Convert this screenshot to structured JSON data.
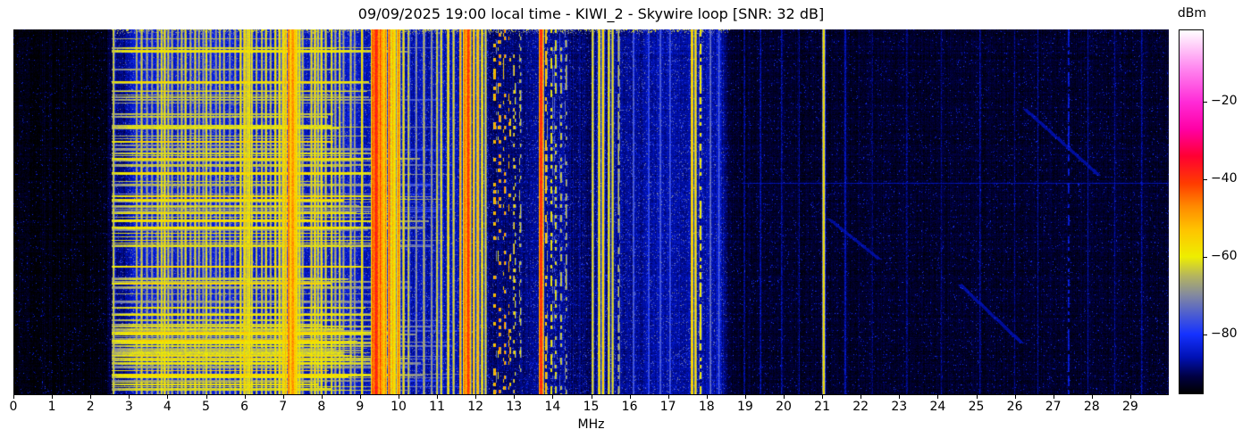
{
  "figure": {
    "title": "09/09/2025 19:00 local time - KIWI_2 - Skywire loop [SNR: 32 dB]",
    "xlabel": "MHz"
  },
  "x_axis": {
    "min": 0,
    "max": 30,
    "tick_labels": [
      "0",
      "1",
      "2",
      "3",
      "4",
      "5",
      "6",
      "7",
      "8",
      "9",
      "10",
      "11",
      "12",
      "13",
      "14",
      "15",
      "16",
      "17",
      "18",
      "19",
      "20",
      "21",
      "22",
      "23",
      "24",
      "25",
      "26",
      "27",
      "28",
      "29"
    ]
  },
  "colorbar": {
    "label": "dBm",
    "tick_labels": [
      "−20",
      "−40",
      "−60",
      "−80"
    ],
    "tick_values": [
      -20,
      -40,
      -60,
      -80
    ]
  },
  "chart_data": {
    "type": "heatmap",
    "subtype": "radio-spectrogram-waterfall",
    "title": "09/09/2025 19:00 local time - KIWI_2 - Skywire loop [SNR: 32 dB]",
    "xlabel": "MHz",
    "x_range": [
      0,
      30
    ],
    "x_ticks": [
      0,
      1,
      2,
      3,
      4,
      5,
      6,
      7,
      8,
      9,
      10,
      11,
      12,
      13,
      14,
      15,
      16,
      17,
      18,
      19,
      20,
      21,
      22,
      23,
      24,
      25,
      26,
      27,
      28,
      29
    ],
    "value_unit": "dBm",
    "value_range": [
      -95.3,
      -1.5
    ],
    "colorbar_ticks": [
      -20,
      -40,
      -60,
      -80
    ],
    "colormap": [
      [
        -95.3,
        "#000000"
      ],
      [
        -91,
        "#000041"
      ],
      [
        -86,
        "#0011b4"
      ],
      [
        -80,
        "#1532ff"
      ],
      [
        -75,
        "#4b5cd2"
      ],
      [
        -70,
        "#8288a0"
      ],
      [
        -65,
        "#b4b45f"
      ],
      [
        -60,
        "#eeee00"
      ],
      [
        -53,
        "#ffc300"
      ],
      [
        -47,
        "#ff8a00"
      ],
      [
        -41,
        "#ff3b00"
      ],
      [
        -34,
        "#ff0032"
      ],
      [
        -27,
        "#ff00a5"
      ],
      [
        -20,
        "#ff2bd7"
      ],
      [
        -11,
        "#ff8af0"
      ],
      [
        -1.5,
        "#ffffff"
      ]
    ],
    "noise_floor_bands": [
      [
        0,
        2.5,
        -94.5
      ],
      [
        2.5,
        3.0,
        -88.5
      ],
      [
        3.0,
        6.5,
        -84
      ],
      [
        6.5,
        9.0,
        -84.5
      ],
      [
        9.0,
        12.3,
        -86
      ],
      [
        12.3,
        13.4,
        -89
      ],
      [
        13.4,
        14.4,
        -87.5
      ],
      [
        14.4,
        15.1,
        -89
      ],
      [
        15.1,
        16.4,
        -87.5
      ],
      [
        16.4,
        18.5,
        -86.5
      ],
      [
        18.5,
        30,
        -92.5
      ]
    ],
    "signals": [
      [
        2.6,
        -62
      ],
      [
        3.2,
        -65
      ],
      [
        3.33,
        -62
      ],
      [
        3.47,
        -66
      ],
      [
        3.6,
        -67
      ],
      [
        3.75,
        -63
      ],
      [
        3.85,
        -60
      ],
      [
        3.93,
        -58
      ],
      [
        4.02,
        -62
      ],
      [
        4.12,
        -65
      ],
      [
        4.27,
        -66
      ],
      [
        4.37,
        -63
      ],
      [
        4.47,
        -60
      ],
      [
        4.6,
        -65
      ],
      [
        4.72,
        -61
      ],
      [
        4.82,
        -64
      ],
      [
        4.93,
        -66
      ],
      [
        5.01,
        -60
      ],
      [
        5.12,
        -64
      ],
      [
        5.26,
        -67
      ],
      [
        5.36,
        -62
      ],
      [
        5.47,
        -64
      ],
      [
        5.62,
        -67
      ],
      [
        5.76,
        -64
      ],
      [
        5.9,
        -58
      ],
      [
        6.0,
        -55
      ],
      [
        6.07,
        -58
      ],
      [
        6.13,
        -56
      ],
      [
        6.19,
        -60
      ],
      [
        6.31,
        -63
      ],
      [
        6.45,
        -62
      ],
      [
        6.56,
        -60
      ],
      [
        6.68,
        -64
      ],
      [
        6.8,
        -58
      ],
      [
        6.91,
        -56
      ],
      [
        7.0,
        -55
      ],
      [
        7.07,
        -52
      ],
      [
        7.15,
        -44
      ],
      [
        7.22,
        -50
      ],
      [
        7.26,
        -46
      ],
      [
        7.31,
        -52
      ],
      [
        7.36,
        -55
      ],
      [
        7.43,
        -58
      ],
      [
        7.51,
        -64
      ],
      [
        7.74,
        -60
      ],
      [
        7.83,
        -57
      ],
      [
        7.91,
        -61
      ],
      [
        8.0,
        -58
      ],
      [
        8.11,
        -62
      ],
      [
        8.26,
        -60
      ],
      [
        8.36,
        -64
      ],
      [
        8.47,
        -61
      ],
      [
        8.57,
        -66
      ],
      [
        8.76,
        -63
      ],
      [
        8.86,
        -67
      ],
      [
        9.05,
        -57
      ],
      [
        9.33,
        -42,
        0.06
      ],
      [
        9.42,
        -38,
        0.11
      ],
      [
        9.53,
        -42,
        0.06
      ],
      [
        9.59,
        -48
      ],
      [
        9.66,
        -46
      ],
      [
        9.76,
        -44,
        0.06
      ],
      [
        9.85,
        -50
      ],
      [
        9.91,
        -55
      ],
      [
        10.0,
        -46,
        0.06
      ],
      [
        10.13,
        -58
      ],
      [
        10.26,
        -62
      ],
      [
        10.46,
        -68
      ],
      [
        10.66,
        -64
      ],
      [
        10.86,
        -67
      ],
      [
        11.0,
        -62
      ],
      [
        11.11,
        -60
      ],
      [
        11.29,
        -56
      ],
      [
        11.43,
        -61
      ],
      [
        11.6,
        -50
      ],
      [
        11.72,
        -44,
        0.06
      ],
      [
        11.81,
        -40,
        0.09
      ],
      [
        11.95,
        -52
      ],
      [
        12.06,
        -50
      ],
      [
        12.17,
        -56
      ],
      [
        12.26,
        -61
      ],
      [
        12.5,
        -48,
        0.05,
        0.25
      ],
      [
        12.62,
        -46,
        0.05,
        0.2
      ],
      [
        12.75,
        -47,
        0.05,
        0.22
      ],
      [
        12.88,
        -48,
        0.05,
        0.2
      ],
      [
        13.01,
        -55,
        0.05,
        0.3
      ],
      [
        13.16,
        -62,
        0.05,
        0.4
      ],
      [
        13.7,
        -38,
        0.08
      ],
      [
        13.83,
        -52,
        0.05,
        0.5
      ],
      [
        13.97,
        -58,
        0.05,
        0.5
      ],
      [
        14.08,
        -60,
        0.05,
        0.45
      ],
      [
        14.22,
        -62,
        0.05,
        0.4
      ],
      [
        14.35,
        -64,
        0.05,
        0.4
      ],
      [
        15.04,
        -60
      ],
      [
        15.21,
        -55
      ],
      [
        15.31,
        -54
      ],
      [
        15.46,
        -58
      ],
      [
        15.56,
        -60
      ],
      [
        15.72,
        -64,
        0.05,
        0.7
      ],
      [
        16.1,
        -74
      ],
      [
        16.5,
        -76
      ],
      [
        16.8,
        -74
      ],
      [
        17.05,
        -75
      ],
      [
        17.62,
        -52
      ],
      [
        17.71,
        -56
      ],
      [
        17.84,
        -58,
        0.05,
        0.6
      ],
      [
        18.1,
        -72
      ],
      [
        18.32,
        -74
      ],
      [
        18.98,
        -86
      ],
      [
        19.4,
        -85
      ],
      [
        19.95,
        -86
      ],
      [
        20.4,
        -87
      ],
      [
        21.04,
        -56
      ],
      [
        21.6,
        -84
      ],
      [
        22.3,
        -88
      ],
      [
        23.2,
        -87
      ],
      [
        24.1,
        -88
      ],
      [
        25.1,
        -86
      ],
      [
        26.0,
        -88
      ],
      [
        26.6,
        -87
      ],
      [
        27.4,
        -82,
        0.05,
        0.6
      ],
      [
        27.9,
        -86
      ],
      [
        28.6,
        -87
      ],
      [
        29.3,
        -86
      ]
    ],
    "static_bursts": {
      "f_start": 2.55,
      "f_end_range": [
        7.8,
        11.8
      ],
      "level_range": [
        -68,
        -55
      ],
      "tail_start": 8.3,
      "tail_fade_per_mhz": 5,
      "zones": [
        {
          "y0": 0.02,
          "y1": 0.25,
          "count": 16
        },
        {
          "y0": 0.25,
          "y1": 0.52,
          "count": 38
        },
        {
          "y0": 0.52,
          "y1": 0.75,
          "count": 20
        },
        {
          "y0": 0.75,
          "y1": 0.87,
          "count": 26
        },
        {
          "y0": 0.87,
          "y1": 0.99,
          "count": 42
        }
      ]
    },
    "quiet_line": {
      "y_frac": 0.421,
      "f_start": 18.9,
      "level": -86
    },
    "chirps": [
      {
        "f0": 26.3,
        "f1": 28.2,
        "y0": 0.22,
        "y1": 0.4
      },
      {
        "f0": 24.6,
        "f1": 26.2,
        "y0": 0.7,
        "y1": 0.86
      },
      {
        "f0": 21.2,
        "f1": 22.5,
        "y0": 0.52,
        "y1": 0.63
      }
    ],
    "top_rows_activity": {
      "rows": 5,
      "f_start": 2.55,
      "f_end": 18.6
    },
    "seed": 20250909
  }
}
